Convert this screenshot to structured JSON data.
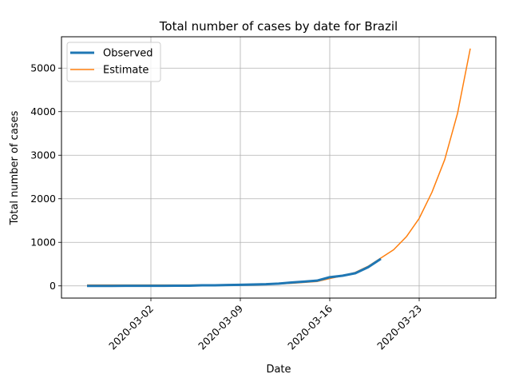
{
  "chart_data": {
    "type": "line",
    "title": "Total number of cases by date for Brazil",
    "xlabel": "Date",
    "ylabel": "Total number of cases",
    "x_type": "date",
    "xlim": [
      "2020-02-24",
      "2020-03-29"
    ],
    "ylim": [
      -280,
      5720
    ],
    "x_ticks": [
      "2020-03-02",
      "2020-03-09",
      "2020-03-16",
      "2020-03-23"
    ],
    "y_ticks": [
      0,
      1000,
      2000,
      3000,
      4000,
      5000
    ],
    "grid": true,
    "legend_position": "top-left",
    "series": [
      {
        "name": "Observed",
        "color": "#1f77b4",
        "points": [
          [
            "2020-02-26",
            1
          ],
          [
            "2020-02-27",
            1
          ],
          [
            "2020-02-28",
            1
          ],
          [
            "2020-02-29",
            2
          ],
          [
            "2020-03-01",
            2
          ],
          [
            "2020-03-02",
            2
          ],
          [
            "2020-03-03",
            2
          ],
          [
            "2020-03-04",
            4
          ],
          [
            "2020-03-05",
            4
          ],
          [
            "2020-03-06",
            13
          ],
          [
            "2020-03-07",
            13
          ],
          [
            "2020-03-08",
            20
          ],
          [
            "2020-03-09",
            25
          ],
          [
            "2020-03-10",
            31
          ],
          [
            "2020-03-11",
            38
          ],
          [
            "2020-03-12",
            52
          ],
          [
            "2020-03-13",
            77
          ],
          [
            "2020-03-14",
            98
          ],
          [
            "2020-03-15",
            121
          ],
          [
            "2020-03-16",
            200
          ],
          [
            "2020-03-17",
            234
          ],
          [
            "2020-03-18",
            291
          ],
          [
            "2020-03-19",
            428
          ],
          [
            "2020-03-20",
            621
          ]
        ]
      },
      {
        "name": "Estimate",
        "color": "#ff7f0e",
        "points": [
          [
            "2020-02-26",
            20
          ],
          [
            "2020-02-27",
            20
          ],
          [
            "2020-02-28",
            20
          ],
          [
            "2020-02-29",
            20
          ],
          [
            "2020-03-01",
            20
          ],
          [
            "2020-03-02",
            20
          ],
          [
            "2020-03-03",
            20
          ],
          [
            "2020-03-04",
            20
          ],
          [
            "2020-03-05",
            20
          ],
          [
            "2020-03-06",
            22
          ],
          [
            "2020-03-07",
            24
          ],
          [
            "2020-03-08",
            26
          ],
          [
            "2020-03-09",
            20
          ],
          [
            "2020-03-10",
            22
          ],
          [
            "2020-03-11",
            30
          ],
          [
            "2020-03-12",
            45
          ],
          [
            "2020-03-13",
            60
          ],
          [
            "2020-03-14",
            80
          ],
          [
            "2020-03-15",
            100
          ],
          [
            "2020-03-16",
            170
          ],
          [
            "2020-03-17",
            230
          ],
          [
            "2020-03-18",
            310
          ],
          [
            "2020-03-19",
            450
          ],
          [
            "2020-03-20",
            640
          ],
          [
            "2020-03-21",
            830
          ],
          [
            "2020-03-22",
            1130
          ],
          [
            "2020-03-23",
            1550
          ],
          [
            "2020-03-24",
            2150
          ],
          [
            "2020-03-25",
            2900
          ],
          [
            "2020-03-26",
            3960
          ],
          [
            "2020-03-27",
            5450
          ]
        ]
      }
    ]
  }
}
